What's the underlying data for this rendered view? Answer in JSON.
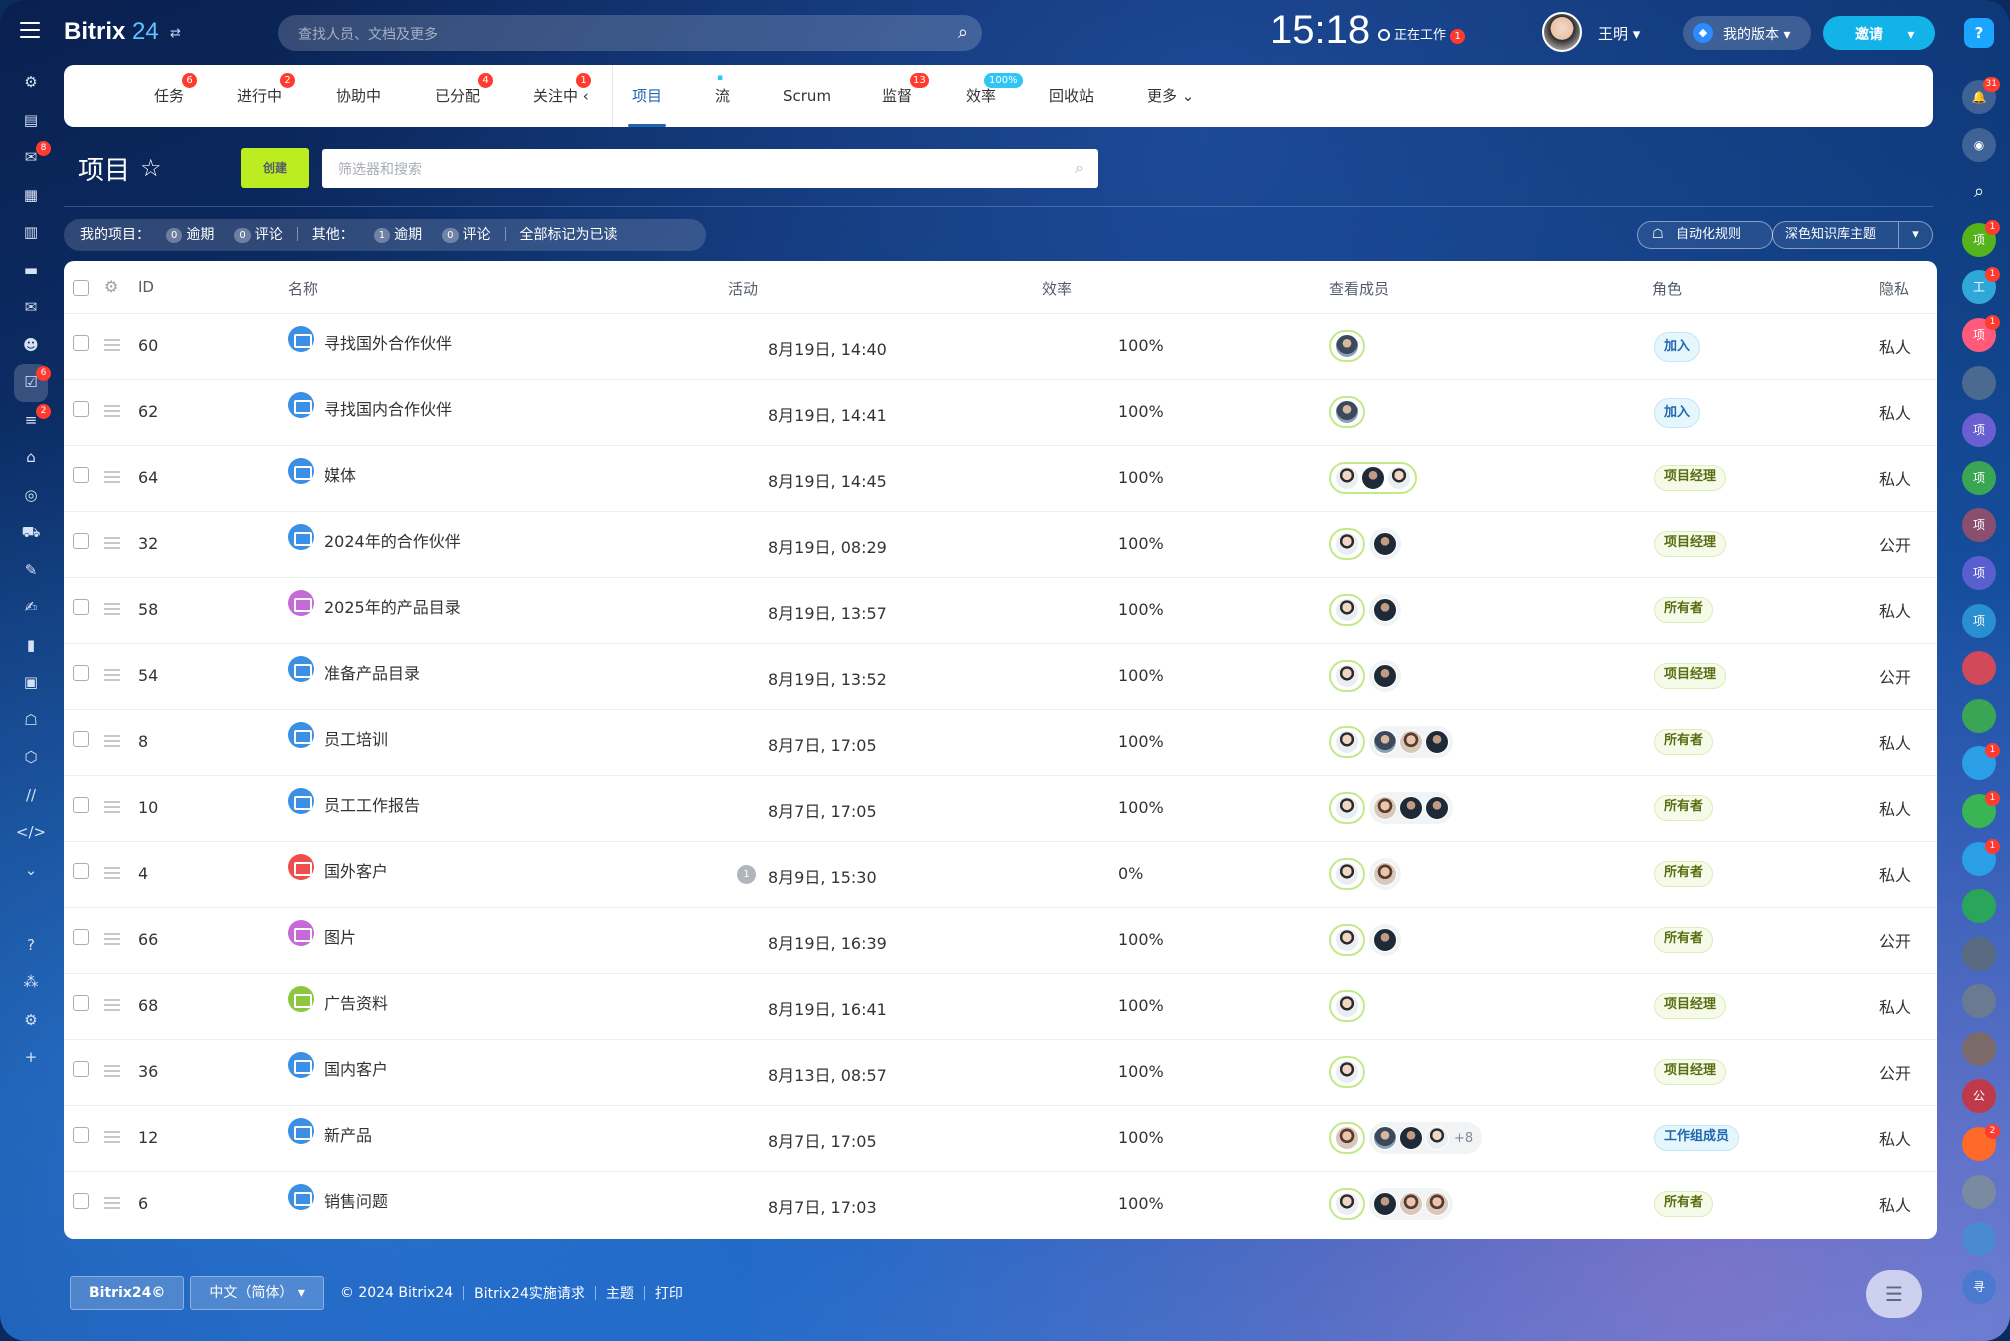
{
  "app": {
    "logo_text": "Bitrix",
    "logo_num": "24",
    "search_placeholder": "查找人员、文档及更多"
  },
  "topbar": {
    "clock": "15:18",
    "work_status": "正在工作",
    "work_badge": "1",
    "user_name": "王明",
    "version_label": "我的版本",
    "invite_label": "邀请",
    "help_label": "?"
  },
  "leftbar": {
    "badges": {
      "chat": "8",
      "tasks": "6",
      "filter": "2"
    }
  },
  "rightbar": {
    "notif_badge": "31",
    "items": [
      {
        "label": "项",
        "color": "#55b31c",
        "badge": "1"
      },
      {
        "label": "工",
        "color": "#2fa8d8",
        "badge": "1"
      },
      {
        "label": "项",
        "color": "#ff5a7a",
        "badge": "1"
      },
      {
        "label": "",
        "color": "#4a6a90",
        "badge": ""
      },
      {
        "label": "项",
        "color": "#6a5fd0",
        "badge": ""
      },
      {
        "label": "项",
        "color": "#3aa655",
        "badge": ""
      },
      {
        "label": "项",
        "color": "#8a4f6f",
        "badge": ""
      },
      {
        "label": "项",
        "color": "#5a5fd0",
        "badge": ""
      },
      {
        "label": "项",
        "color": "#2a8fd0",
        "badge": ""
      },
      {
        "label": "",
        "color": "#d04a5a",
        "badge": ""
      },
      {
        "label": "",
        "color": "#3aa655",
        "badge": ""
      },
      {
        "label": "",
        "color": "#2a9fe8",
        "badge": "1"
      },
      {
        "label": "",
        "color": "#3ab555",
        "badge": "1"
      },
      {
        "label": "",
        "color": "#2a9fe8",
        "badge": "1"
      },
      {
        "label": "",
        "color": "#2aa65a",
        "badge": ""
      },
      {
        "label": "",
        "color": "#5a6a80",
        "badge": ""
      },
      {
        "label": "",
        "color": "#6a7a90",
        "badge": ""
      },
      {
        "label": "",
        "color": "#7a6a6a",
        "badge": ""
      },
      {
        "label": "公",
        "color": "#c0394a",
        "badge": ""
      },
      {
        "label": "",
        "color": "#ff6a2a",
        "badge": "2"
      },
      {
        "label": "",
        "color": "#7a8aa0",
        "badge": ""
      },
      {
        "label": "",
        "color": "#4a8ad0",
        "badge": ""
      },
      {
        "label": "寻",
        "color": "#4a7ad0",
        "badge": ""
      }
    ]
  },
  "tabs": [
    {
      "label": "任务",
      "badge": "6",
      "badge_type": "red"
    },
    {
      "label": "进行中",
      "badge": "2",
      "badge_type": "red"
    },
    {
      "label": "协助中",
      "badge": "",
      "badge_type": ""
    },
    {
      "label": "已分配",
      "badge": "4",
      "badge_type": "red"
    },
    {
      "label": "关注中",
      "badge": "1",
      "badge_type": "red"
    },
    {
      "label": "项目",
      "badge": "",
      "badge_type": ""
    },
    {
      "label": "流",
      "badge": "",
      "badge_type": ""
    },
    {
      "label": "Scrum",
      "badge": "",
      "badge_type": ""
    },
    {
      "label": "监督",
      "badge": "13",
      "badge_type": "red"
    },
    {
      "label": "效率",
      "badge": "100%",
      "badge_type": "blue"
    },
    {
      "label": "回收站",
      "badge": "",
      "badge_type": ""
    },
    {
      "label": "更多",
      "badge": "",
      "badge_type": ""
    }
  ],
  "page": {
    "title": "项目",
    "create_label": "创建",
    "filter_placeholder": "筛选器和搜索"
  },
  "counters": {
    "my_label": "我的项目：",
    "overdue_count": "0",
    "overdue_label": "逾期",
    "comment_count": "0",
    "comment_label": "评论",
    "other_label": "其他：",
    "other_overdue_count": "1",
    "other_overdue_label": "逾期",
    "other_comment_count": "0",
    "other_comment_label": "评论",
    "mark_read": "全部标记为已读"
  },
  "actions": {
    "automation": "自动化规则",
    "theme": "深色知识库主题"
  },
  "table": {
    "headers": {
      "id": "ID",
      "name": "名称",
      "activity": "活动",
      "efficiency": "效率",
      "members": "查看成员",
      "role": "角色",
      "privacy": "隐私"
    },
    "rows": [
      {
        "id": "60",
        "name": "寻找国外合作伙伴",
        "icon_color": "#3b8fe5",
        "activity": "8月19日, 14:40",
        "act_badge": "",
        "eff": "100%",
        "members": [
          "m"
        ],
        "more": "",
        "role": "加入",
        "role_type": "join",
        "privacy": "私人"
      },
      {
        "id": "62",
        "name": "寻找国内合作伙伴",
        "icon_color": "#3b8fe5",
        "activity": "8月19日, 14:41",
        "act_badge": "",
        "eff": "100%",
        "members": [
          "m"
        ],
        "more": "",
        "role": "加入",
        "role_type": "join",
        "privacy": "私人"
      },
      {
        "id": "64",
        "name": "媒体",
        "icon_color": "#3b8fe5",
        "activity": "8月19日, 14:45",
        "act_badge": "",
        "eff": "100%",
        "members": [
          "f",
          "d",
          "f"
        ],
        "more": "",
        "role": "项目经理",
        "role_type": "pm",
        "privacy": "私人"
      },
      {
        "id": "32",
        "name": "2024年的合作伙伴",
        "icon_color": "#3b8fe5",
        "activity": "8月19日, 08:29",
        "act_badge": "",
        "eff": "100%",
        "members": [
          "f",
          "|",
          "d"
        ],
        "more": "",
        "role": "项目经理",
        "role_type": "pm",
        "privacy": "公开"
      },
      {
        "id": "58",
        "name": "2025年的产品目录",
        "icon_color": "#c66ad8",
        "activity": "8月19日, 13:57",
        "act_badge": "",
        "eff": "100%",
        "members": [
          "f",
          "|",
          "d"
        ],
        "more": "",
        "role": "所有者",
        "role_type": "owner",
        "privacy": "私人"
      },
      {
        "id": "54",
        "name": "准备产品目录",
        "icon_color": "#3b8fe5",
        "activity": "8月19日, 13:52",
        "act_badge": "",
        "eff": "100%",
        "members": [
          "f",
          "|",
          "d"
        ],
        "more": "",
        "role": "项目经理",
        "role_type": "pm",
        "privacy": "公开"
      },
      {
        "id": "8",
        "name": "员工培训",
        "icon_color": "#3b8fe5",
        "activity": "8月7日, 17:05",
        "act_badge": "",
        "eff": "100%",
        "members": [
          "f",
          "|",
          "m",
          "b",
          "d"
        ],
        "more": "",
        "role": "所有者",
        "role_type": "owner",
        "privacy": "私人"
      },
      {
        "id": "10",
        "name": "员工工作报告",
        "icon_color": "#3b8fe5",
        "activity": "8月7日, 17:05",
        "act_badge": "",
        "eff": "100%",
        "members": [
          "f",
          "|",
          "b",
          "d",
          "d"
        ],
        "more": "",
        "role": "所有者",
        "role_type": "owner",
        "privacy": "私人"
      },
      {
        "id": "4",
        "name": "国外客户",
        "icon_color": "#f04e4e",
        "activity": "8月9日, 15:30",
        "act_badge": "1",
        "eff": "0%",
        "members": [
          "f",
          "|",
          "b"
        ],
        "more": "",
        "role": "所有者",
        "role_type": "owner",
        "privacy": "私人"
      },
      {
        "id": "66",
        "name": "图片",
        "icon_color": "#c66ad8",
        "activity": "8月19日, 16:39",
        "act_badge": "",
        "eff": "100%",
        "members": [
          "f",
          "|",
          "d"
        ],
        "more": "",
        "role": "所有者",
        "role_type": "owner",
        "privacy": "公开"
      },
      {
        "id": "68",
        "name": "广告资料",
        "icon_color": "#8dc63f",
        "activity": "8月19日, 16:41",
        "act_badge": "",
        "eff": "100%",
        "members": [
          "f"
        ],
        "more": "",
        "role": "项目经理",
        "role_type": "pm",
        "privacy": "私人"
      },
      {
        "id": "36",
        "name": "国内客户",
        "icon_color": "#3b8fe5",
        "activity": "8月13日, 08:57",
        "act_badge": "",
        "eff": "100%",
        "members": [
          "f"
        ],
        "more": "",
        "role": "项目经理",
        "role_type": "pm",
        "privacy": "公开"
      },
      {
        "id": "12",
        "name": "新产品",
        "icon_color": "#3b8fe5",
        "activity": "8月7日, 17:05",
        "act_badge": "",
        "eff": "100%",
        "members": [
          "b",
          "|",
          "m",
          "d",
          "f"
        ],
        "more": "+8",
        "role": "工作组成员",
        "role_type": "member",
        "privacy": "私人"
      },
      {
        "id": "6",
        "name": "销售问题",
        "icon_color": "#3b8fe5",
        "activity": "8月7日, 17:03",
        "act_badge": "",
        "eff": "100%",
        "members": [
          "f",
          "|",
          "d",
          "b",
          "b"
        ],
        "more": "",
        "role": "所有者",
        "role_type": "owner",
        "privacy": "私人"
      }
    ]
  },
  "footer": {
    "brand": "Bitrix24©",
    "language": "中文（简体）",
    "copyright": "© 2024 Bitrix24",
    "implementation": "Bitrix24实施请求",
    "theme": "主题",
    "print": "打印"
  }
}
